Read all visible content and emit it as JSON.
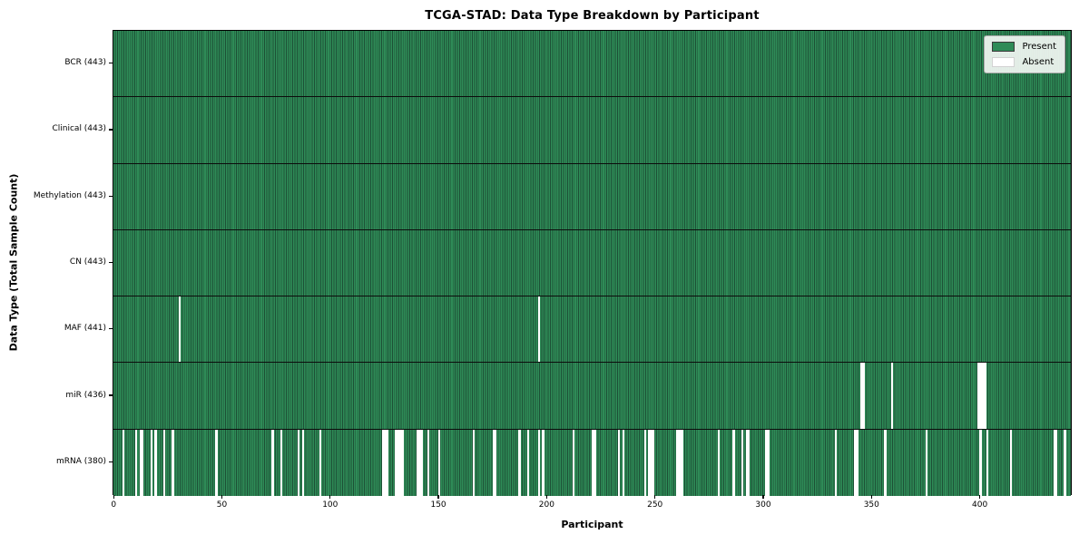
{
  "chart_data": {
    "type": "heatmap",
    "title": "TCGA-STAD: Data Type Breakdown by Participant",
    "xlabel": "Participant",
    "ylabel": "Data Type (Total Sample Count)",
    "x_ticks": [
      0,
      50,
      100,
      150,
      200,
      250,
      300,
      350,
      400
    ],
    "x_range": [
      -0.5,
      442.5
    ],
    "total_participants": 443,
    "grid": false,
    "legend_position": "upper right",
    "legend": [
      {
        "label": "Present",
        "color": "#2e8b57"
      },
      {
        "label": "Absent",
        "color": "#ffffff"
      }
    ],
    "colors": {
      "present_fill": "#2e8b57",
      "present_edge": "#1d5036",
      "absent_fill": "#ffffff",
      "spine": "#000000"
    },
    "rows": [
      {
        "label": "BCR (443)",
        "present_count": 443,
        "absent_participants": []
      },
      {
        "label": "Clinical (443)",
        "present_count": 443,
        "absent_participants": []
      },
      {
        "label": "Methylation (443)",
        "present_count": 443,
        "absent_participants": []
      },
      {
        "label": "CN (443)",
        "present_count": 443,
        "absent_participants": []
      },
      {
        "label": "MAF (441)",
        "present_count": 441,
        "absent_participants": [
          30,
          196
        ]
      },
      {
        "label": "miR (436)",
        "present_count": 436,
        "absent_participants": [
          345,
          346,
          359,
          399,
          400,
          401,
          402
        ]
      },
      {
        "label": "mRNA (380)",
        "present_count": 380,
        "absent_participants": [
          4,
          10,
          12,
          13,
          17,
          19,
          23,
          27,
          47,
          73,
          77,
          85,
          87,
          95,
          124,
          125,
          126,
          130,
          131,
          132,
          133,
          140,
          141,
          142,
          145,
          150,
          166,
          175,
          176,
          187,
          191,
          196,
          198,
          212,
          221,
          222,
          233,
          235,
          245,
          247,
          248,
          249,
          260,
          261,
          262,
          279,
          286,
          290,
          292,
          293,
          301,
          302,
          333,
          342,
          343,
          356,
          375,
          400,
          403,
          414,
          434,
          435,
          439
        ]
      }
    ]
  }
}
